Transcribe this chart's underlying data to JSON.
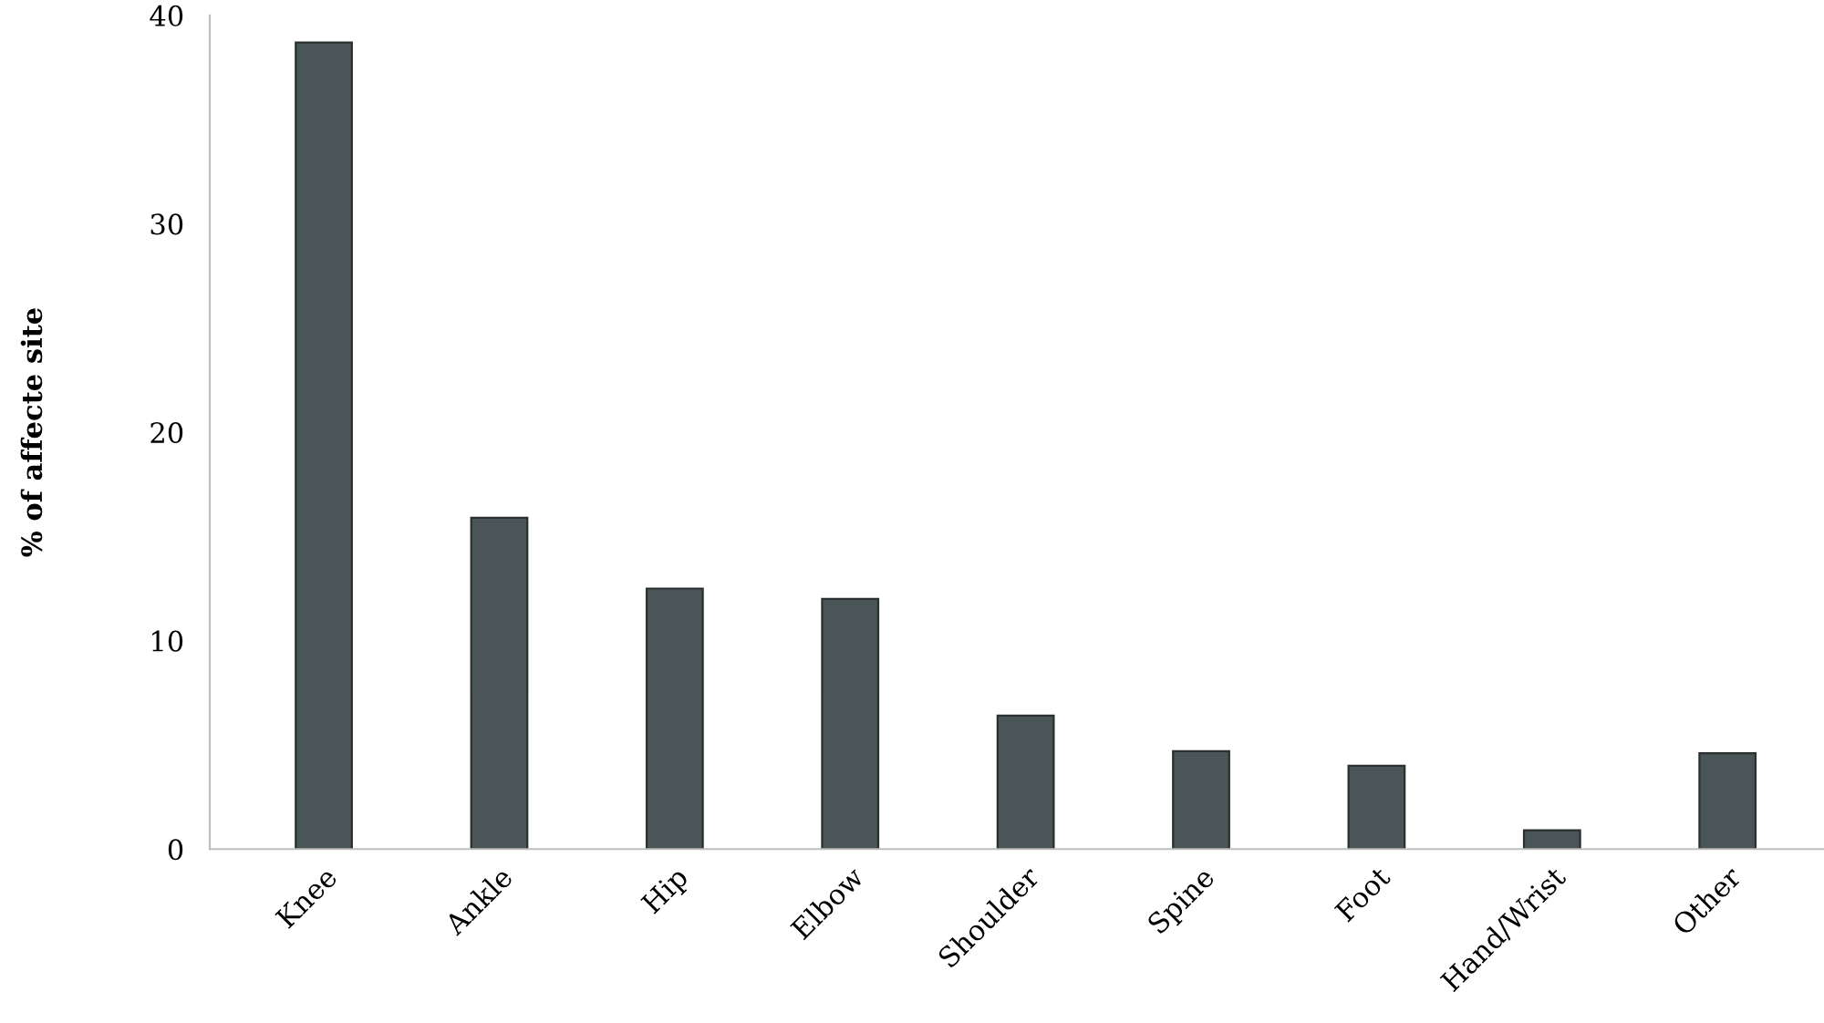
{
  "chart_data": {
    "type": "bar",
    "ylabel": "% of affecte site",
    "categories": [
      "Knee",
      "Ankle",
      "Hip",
      "Elbow",
      "Shoulder",
      "Spine",
      "Foot",
      "Hand/Wrist",
      "Other"
    ],
    "values": [
      38.7,
      15.9,
      12.5,
      12.0,
      6.4,
      4.7,
      4.0,
      0.9,
      4.6
    ],
    "color": "#4a5557",
    "ylim": [
      0,
      40
    ],
    "yticks": [
      0,
      10,
      20,
      30,
      40
    ],
    "grid": false,
    "legend": false
  }
}
